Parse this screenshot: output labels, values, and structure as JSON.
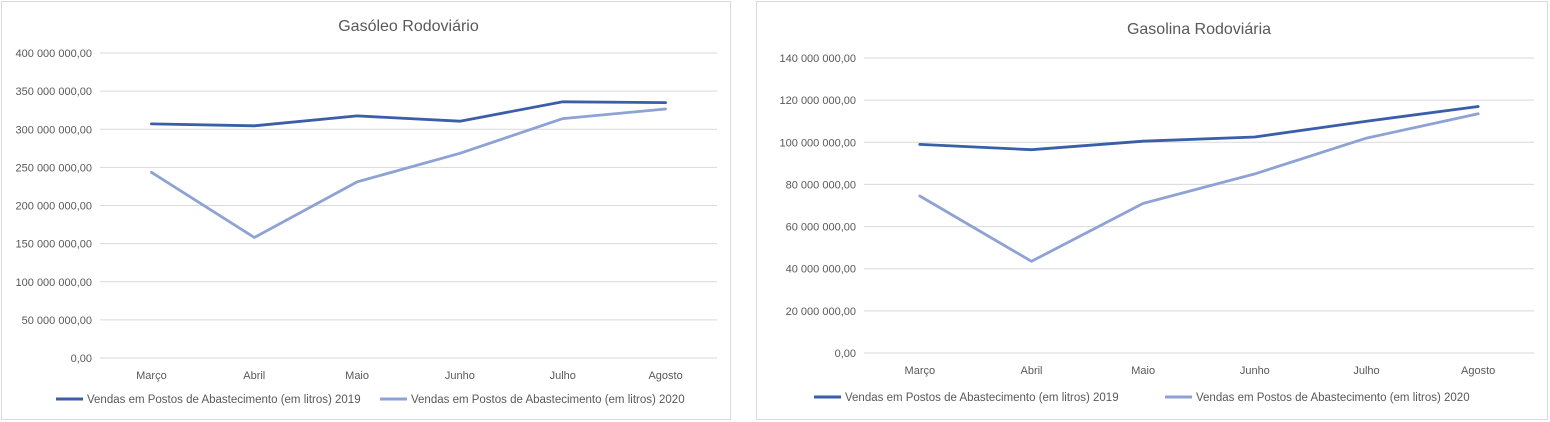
{
  "chart_data": [
    {
      "type": "line",
      "title": "Gasóleo Rodoviário",
      "categories": [
        "Março",
        "Abril",
        "Maio",
        "Junho",
        "Julho",
        "Agosto"
      ],
      "ylim": [
        0,
        400000000
      ],
      "ytick_step": 50000000,
      "yticks": [
        "0,00",
        "50 000 000,00",
        "100 000 000,00",
        "150 000 000,00",
        "200 000 000,00",
        "250 000 000,00",
        "300 000 000,00",
        "350 000 000,00",
        "400 000 000,00"
      ],
      "grid": true,
      "legend_position": "bottom",
      "series": [
        {
          "name": "Vendas em Postos de Abastecimento  (em litros) 2019",
          "color": "#3a5ea8",
          "values": [
            307000000,
            304500000,
            317500000,
            310500000,
            336000000,
            335000000
          ]
        },
        {
          "name": "Vendas em Postos de Abastecimento  (em litros) 2020",
          "color": "#8fa2d4",
          "values": [
            243500000,
            158000000,
            231000000,
            268500000,
            314000000,
            326500000
          ]
        }
      ]
    },
    {
      "type": "line",
      "title": "Gasolina Rodoviária",
      "categories": [
        "Março",
        "Abril",
        "Maio",
        "Junho",
        "Julho",
        "Agosto"
      ],
      "ylim": [
        0,
        140000000
      ],
      "ytick_step": 20000000,
      "yticks": [
        "0,00",
        "20 000 000,00",
        "40 000 000,00",
        "60 000 000,00",
        "80 000 000,00",
        "100 000 000,00",
        "120 000 000,00",
        "140 000 000,00"
      ],
      "grid": true,
      "legend_position": "bottom",
      "series": [
        {
          "name": "Vendas em Postos de Abastecimento  (em litros) 2019",
          "color": "#3a5ea8",
          "values": [
            99000000,
            96500000,
            100500000,
            102500000,
            110000000,
            117000000
          ]
        },
        {
          "name": "Vendas em Postos de Abastecimento  (em litros) 2020",
          "color": "#8fa2d4",
          "values": [
            74500000,
            43500000,
            71000000,
            85000000,
            102000000,
            113500000
          ]
        }
      ]
    }
  ]
}
